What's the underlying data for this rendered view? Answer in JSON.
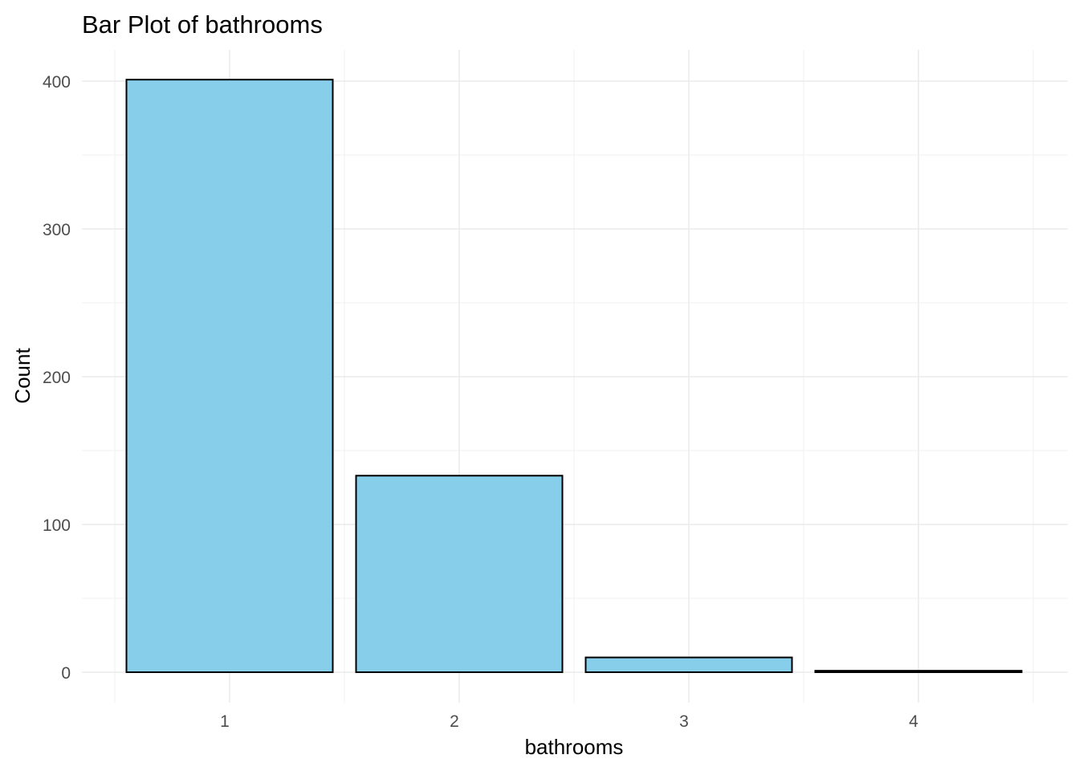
{
  "chart_data": {
    "type": "bar",
    "title": "Bar Plot of bathrooms",
    "xlabel": "bathrooms",
    "ylabel": "Count",
    "categories": [
      "1",
      "2",
      "3",
      "4"
    ],
    "values": [
      401,
      133,
      10,
      1
    ],
    "ylim": [
      0,
      400
    ],
    "yticks": [
      0,
      100,
      200,
      300,
      400
    ],
    "ytick_labels": [
      "0",
      "100",
      "200",
      "300",
      "400"
    ],
    "grid": true,
    "bar_fill": "#87CEEB",
    "bar_outline": "#000000"
  }
}
